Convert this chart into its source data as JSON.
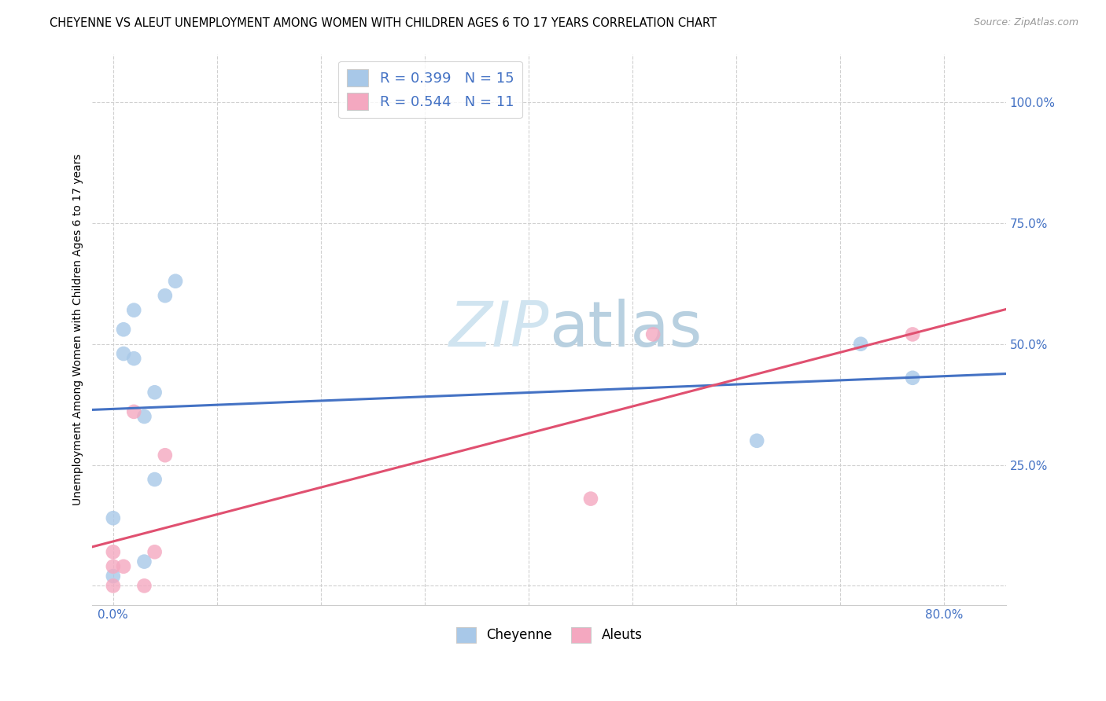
{
  "title": "CHEYENNE VS ALEUT UNEMPLOYMENT AMONG WOMEN WITH CHILDREN AGES 6 TO 17 YEARS CORRELATION CHART",
  "source": "Source: ZipAtlas.com",
  "xlabel": "",
  "ylabel": "Unemployment Among Women with Children Ages 6 to 17 years",
  "legend_bottom": [
    "Cheyenne",
    "Aleuts"
  ],
  "cheyenne_label": "R = 0.399   N = 15",
  "aleut_label": "R = 0.544   N = 11",
  "cheyenne_R": 0.399,
  "cheyenne_N": 15,
  "aleut_R": 0.544,
  "aleut_N": 11,
  "cheyenne_color": "#a8c8e8",
  "aleut_color": "#f4a8c0",
  "cheyenne_line_color": "#4472c4",
  "aleut_line_color": "#e05070",
  "watermark_color": "#d0e4f0",
  "xlim": [
    -0.02,
    0.86
  ],
  "ylim": [
    -0.04,
    1.1
  ],
  "xticks": [
    0.0,
    0.1,
    0.2,
    0.3,
    0.4,
    0.5,
    0.6,
    0.7,
    0.8
  ],
  "xticklabels": [
    "0.0%",
    "",
    "",
    "",
    "",
    "",
    "",
    "",
    "80.0%"
  ],
  "yticks": [
    0.0,
    0.25,
    0.5,
    0.75,
    1.0
  ],
  "yticklabels": [
    "",
    "25.0%",
    "50.0%",
    "75.0%",
    "100.0%"
  ],
  "cheyenne_x": [
    0.0,
    0.0,
    0.01,
    0.01,
    0.02,
    0.02,
    0.03,
    0.03,
    0.04,
    0.04,
    0.05,
    0.06,
    0.62,
    0.72,
    0.77
  ],
  "cheyenne_y": [
    0.02,
    0.14,
    0.53,
    0.48,
    0.57,
    0.47,
    0.35,
    0.05,
    0.4,
    0.22,
    0.6,
    0.63,
    0.3,
    0.5,
    0.43
  ],
  "aleut_x": [
    0.0,
    0.0,
    0.0,
    0.01,
    0.02,
    0.03,
    0.04,
    0.05,
    0.46,
    0.52,
    0.77
  ],
  "aleut_y": [
    0.0,
    0.04,
    0.07,
    0.04,
    0.36,
    0.0,
    0.07,
    0.27,
    0.18,
    0.52,
    0.52
  ],
  "background_color": "#ffffff",
  "grid_color": "#d0d0d0",
  "title_fontsize": 10.5,
  "axis_label_fontsize": 10,
  "tick_label_fontsize": 11,
  "tick_color": "#4472c4"
}
